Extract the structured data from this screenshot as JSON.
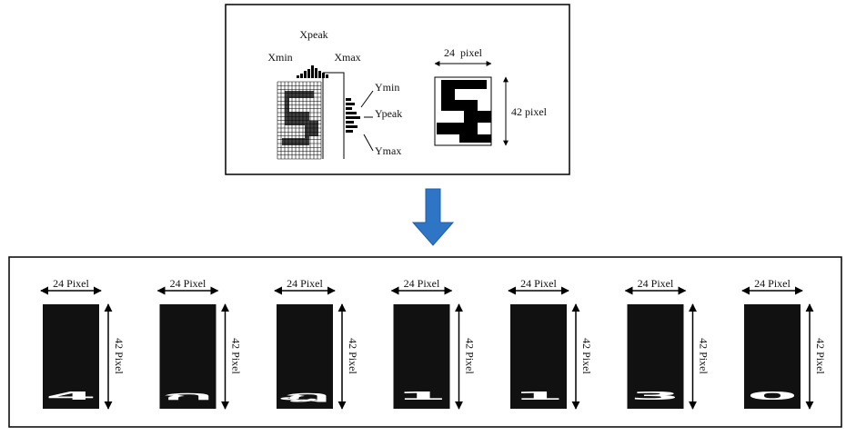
{
  "top_panel": {
    "projection_labels": {
      "x_peak": "Xpeak",
      "x_min": "Xmin",
      "x_max": "Xmax",
      "y_min": "Ymin",
      "y_peak": "Ypeak",
      "y_max": "Ymax"
    },
    "width_label": "24  pixel",
    "height_label": "42 pixel"
  },
  "characters": [
    {
      "glyph": "4",
      "width_label": "24 Pixel",
      "height_label": "42 Pixel"
    },
    {
      "glyph": "ก",
      "width_label": "24 Pixel",
      "height_label": "42 Pixel"
    },
    {
      "glyph": "ฎ",
      "width_label": "24 Pixel",
      "height_label": "42 Pixel"
    },
    {
      "glyph": "1",
      "width_label": "24 Pixel",
      "height_label": "42 Pixel"
    },
    {
      "glyph": "1",
      "width_label": "24 Pixel",
      "height_label": "42 Pixel"
    },
    {
      "glyph": "3",
      "width_label": "24 Pixel",
      "height_label": "42 Pixel"
    },
    {
      "glyph": "0",
      "width_label": "24 Pixel",
      "height_label": "42 Pixel"
    }
  ]
}
